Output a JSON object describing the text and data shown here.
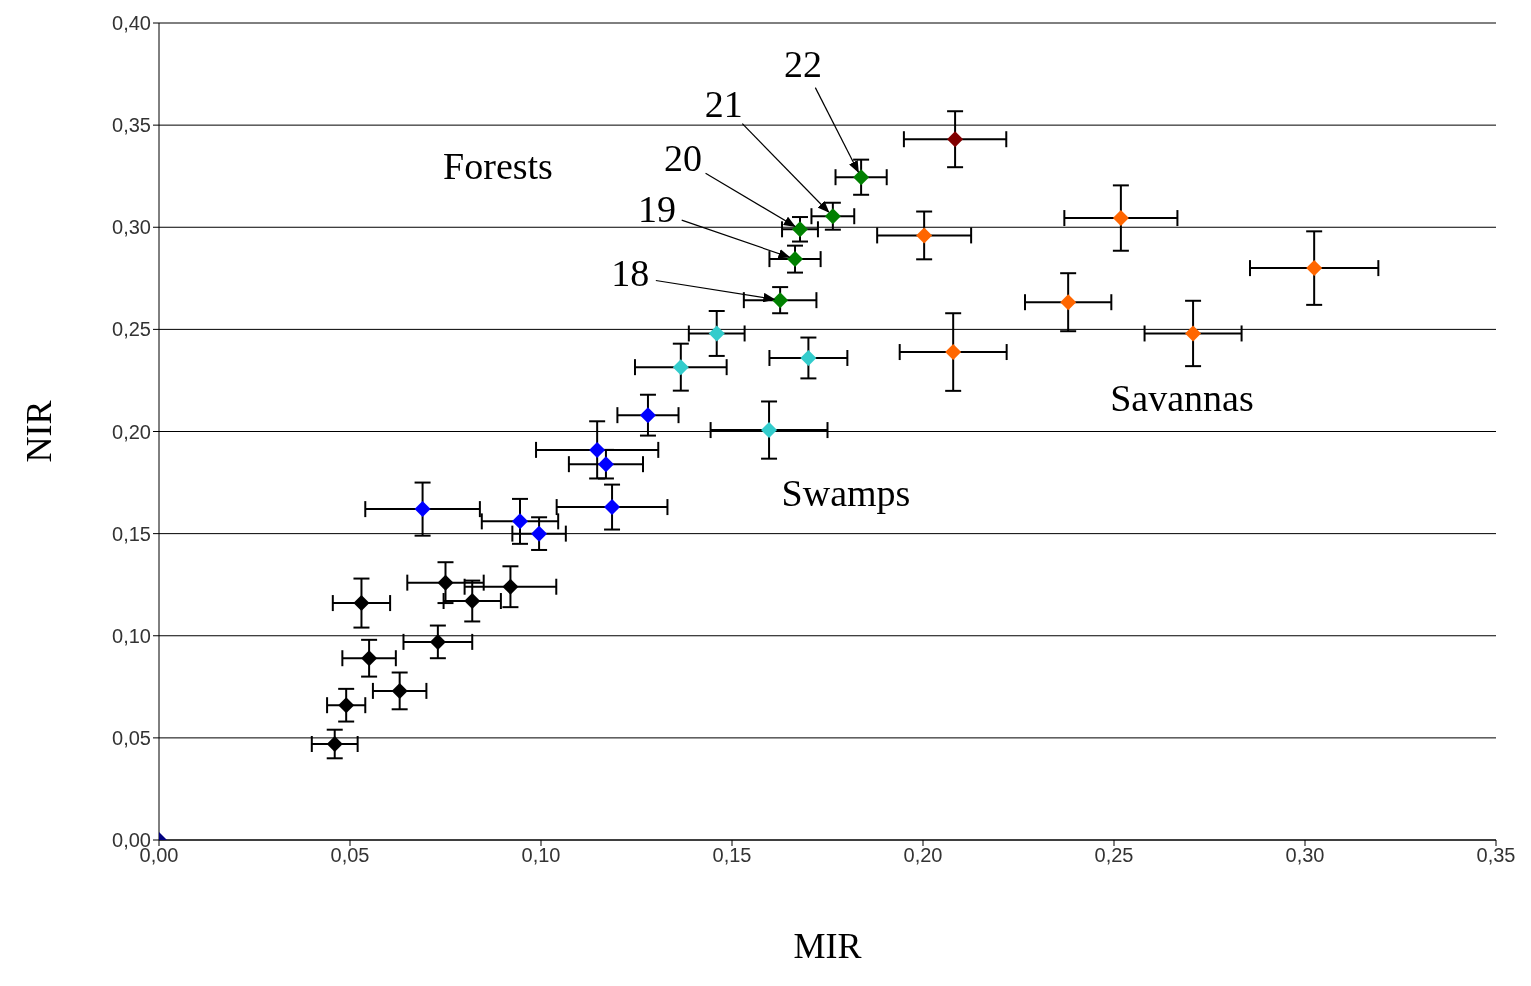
{
  "chart_data": {
    "type": "scatter",
    "xlabel": "MIR",
    "ylabel": "NIR",
    "xlim": [
      0,
      0.35
    ],
    "ylim": [
      0,
      0.4
    ],
    "xticks": [
      {
        "value": 0,
        "label": "0,00"
      },
      {
        "value": 0.05,
        "label": "0,05"
      },
      {
        "value": 0.1,
        "label": "0,10"
      },
      {
        "value": 0.15,
        "label": "0,15"
      },
      {
        "value": 0.2,
        "label": "0,20"
      },
      {
        "value": 0.25,
        "label": "0,25"
      },
      {
        "value": 0.3,
        "label": "0,30"
      },
      {
        "value": 0.35,
        "label": "0,35"
      }
    ],
    "yticks": [
      {
        "value": 0,
        "label": "0,00"
      },
      {
        "value": 0.05,
        "label": "0,05"
      },
      {
        "value": 0.1,
        "label": "0,10"
      },
      {
        "value": 0.15,
        "label": "0,15"
      },
      {
        "value": 0.2,
        "label": "0,20"
      },
      {
        "value": 0.25,
        "label": "0,25"
      },
      {
        "value": 0.3,
        "label": "0,30"
      },
      {
        "value": 0.35,
        "label": "0,35"
      },
      {
        "value": 0.4,
        "label": "0,40"
      }
    ],
    "grid": "y",
    "legend": false,
    "marker": "diamond",
    "series": [
      {
        "color": "#000080",
        "x": [
          0
        ],
        "values": [
          0
        ]
      },
      {
        "color": "#000000",
        "x": [
          0.046,
          0.049,
          0.063,
          0.055,
          0.053,
          0.073,
          0.075,
          0.082,
          0.092
        ],
        "values": [
          0.047,
          0.066,
          0.073,
          0.089,
          0.116,
          0.097,
          0.126,
          0.117,
          0.124
        ],
        "xerrors": [
          0.006,
          0.005,
          0.007,
          0.007,
          0.0075,
          0.009,
          0.01,
          0.0075,
          0.012
        ],
        "errors": [
          0.007,
          0.008,
          0.009,
          0.009,
          0.012,
          0.008,
          0.01,
          0.01,
          0.01
        ]
      },
      {
        "color": "#0000ff",
        "x": [
          0.069,
          0.0945,
          0.0995,
          0.1186,
          0.1147,
          0.117,
          0.128
        ],
        "values": [
          0.162,
          0.156,
          0.15,
          0.163,
          0.191,
          0.184,
          0.208
        ],
        "xerrors": [
          0.015,
          0.01,
          0.007,
          0.0145,
          0.016,
          0.0097,
          0.008
        ],
        "errors": [
          0.013,
          0.011,
          0.008,
          0.011,
          0.014,
          0.007,
          0.01
        ]
      },
      {
        "color": "#33cccc",
        "x": [
          0.1366,
          0.146,
          0.17,
          0.1597
        ],
        "values": [
          0.2315,
          0.248,
          0.236,
          0.2007
        ],
        "xerrors": [
          0.012,
          0.0073,
          0.0102,
          0.0153
        ],
        "errors": [
          0.0115,
          0.011,
          0.01,
          0.014
        ]
      },
      {
        "color": "#008000",
        "x": [
          0.1626,
          0.1665,
          0.1678,
          0.1764,
          0.1838
        ],
        "values": [
          0.2643,
          0.2844,
          0.299,
          0.3054,
          0.3245
        ],
        "xerrors": [
          0.0095,
          0.0067,
          0.0047,
          0.0056,
          0.0067
        ],
        "errors": [
          0.0064,
          0.0066,
          0.006,
          0.0066,
          0.0086
        ]
      },
      {
        "color": "#800000",
        "x": [
          0.2084
        ],
        "values": [
          0.3431
        ],
        "xerrors": [
          0.0134
        ],
        "errors": [
          0.0137
        ]
      },
      {
        "color": "#ff6600",
        "x": [
          0.2003,
          0.2518,
          0.3024,
          0.238,
          0.2707,
          0.2079
        ],
        "values": [
          0.296,
          0.3045,
          0.28,
          0.2633,
          0.248,
          0.2389
        ],
        "xerrors": [
          0.0123,
          0.0148,
          0.0168,
          0.0113,
          0.0127,
          0.014
        ],
        "errors": [
          0.0117,
          0.016,
          0.018,
          0.0142,
          0.016,
          0.019
        ]
      }
    ],
    "annotations": [
      "Forests",
      "Savannas",
      "Swamps",
      {
        "text": "18",
        "x": 0.1626,
        "y": 0.2643
      },
      {
        "text": "19",
        "x": 0.1665,
        "y": 0.2844
      },
      {
        "text": "20",
        "x": 0.1678,
        "y": 0.299
      },
      {
        "text": "21",
        "x": 0.1764,
        "y": 0.3054
      },
      {
        "text": "22",
        "x": 0.1838,
        "y": 0.3245
      }
    ]
  }
}
